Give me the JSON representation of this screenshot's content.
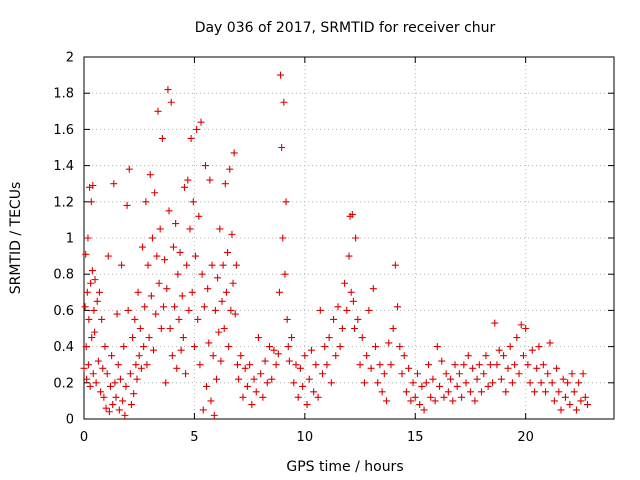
{
  "chart_data": {
    "type": "scatter",
    "title": "Day 036 of 2017, SRMTID for receiver chur",
    "xlabel": "GPS time / hours",
    "ylabel": "SRMTID / TECUs",
    "xlim": [
      0,
      24
    ],
    "ylim": [
      0,
      2
    ],
    "x_ticks": [
      0,
      5,
      10,
      15,
      20
    ],
    "x_tick_labels": [
      "0",
      "5",
      "10",
      "15",
      "20"
    ],
    "y_ticks": [
      0,
      0.2,
      0.4,
      0.6,
      0.8,
      1.0,
      1.2,
      1.4,
      1.6,
      1.8,
      2.0
    ],
    "y_tick_labels": [
      "0",
      "0.2",
      "0.4",
      "0.6",
      "0.8",
      "1",
      "1.2",
      "1.4",
      "1.6",
      "1.8",
      "2"
    ],
    "grid": true,
    "marker": "+",
    "marker_color": "#e00000",
    "series": [
      {
        "name": "SRMTID",
        "points": [
          [
            0.0,
            0.28
          ],
          [
            0.05,
            0.62
          ],
          [
            0.08,
            0.91
          ],
          [
            0.1,
            0.4
          ],
          [
            0.12,
            0.22
          ],
          [
            0.15,
            0.7
          ],
          [
            0.18,
            1.0
          ],
          [
            0.2,
            0.3
          ],
          [
            0.22,
            0.55
          ],
          [
            0.25,
            1.28
          ],
          [
            0.28,
            0.18
          ],
          [
            0.3,
            0.75
          ],
          [
            0.33,
            1.2
          ],
          [
            0.35,
            0.45
          ],
          [
            0.38,
            0.82
          ],
          [
            0.4,
            1.29
          ],
          [
            0.42,
            0.25
          ],
          [
            0.45,
            0.6
          ],
          [
            0.48,
            0.48
          ],
          [
            0.5,
            0.77
          ],
          [
            0.55,
            0.2
          ],
          [
            0.6,
            0.65
          ],
          [
            0.65,
            0.32
          ],
          [
            0.7,
            0.7
          ],
          [
            0.75,
            0.15
          ],
          [
            0.8,
            0.55
          ],
          [
            0.85,
            0.28
          ],
          [
            0.9,
            0.12
          ],
          [
            0.95,
            0.4
          ],
          [
            1.0,
            0.06
          ],
          [
            1.05,
            0.25
          ],
          [
            1.1,
            0.9
          ],
          [
            1.15,
            0.04
          ],
          [
            1.2,
            0.18
          ],
          [
            1.25,
            0.35
          ],
          [
            1.3,
            0.08
          ],
          [
            1.35,
            1.3
          ],
          [
            1.4,
            0.2
          ],
          [
            1.45,
            0.12
          ],
          [
            1.5,
            0.58
          ],
          [
            1.55,
            0.3
          ],
          [
            1.6,
            0.05
          ],
          [
            1.65,
            0.22
          ],
          [
            1.7,
            0.85
          ],
          [
            1.75,
            0.1
          ],
          [
            1.8,
            0.4
          ],
          [
            1.85,
            0.02
          ],
          [
            1.9,
            0.18
          ],
          [
            1.95,
            1.18
          ],
          [
            2.0,
            0.6
          ],
          [
            2.05,
            1.38
          ],
          [
            2.1,
            0.25
          ],
          [
            2.15,
            0.08
          ],
          [
            2.2,
            0.45
          ],
          [
            2.25,
            0.14
          ],
          [
            2.3,
            0.55
          ],
          [
            2.35,
            0.3
          ],
          [
            2.4,
            0.22
          ],
          [
            2.45,
            0.7
          ],
          [
            2.5,
            0.35
          ],
          [
            2.55,
            0.5
          ],
          [
            2.6,
            0.28
          ],
          [
            2.65,
            0.95
          ],
          [
            2.7,
            0.4
          ],
          [
            2.75,
            0.62
          ],
          [
            2.8,
            1.2
          ],
          [
            2.85,
            0.3
          ],
          [
            2.9,
            0.85
          ],
          [
            2.95,
            0.45
          ],
          [
            3.0,
            1.35
          ],
          [
            3.05,
            0.68
          ],
          [
            3.1,
            1.0
          ],
          [
            3.15,
            0.38
          ],
          [
            3.2,
            1.25
          ],
          [
            3.25,
            0.58
          ],
          [
            3.3,
            0.9
          ],
          [
            3.35,
            1.7
          ],
          [
            3.4,
            0.75
          ],
          [
            3.45,
            1.05
          ],
          [
            3.5,
            0.5
          ],
          [
            3.55,
            1.55
          ],
          [
            3.6,
            0.62
          ],
          [
            3.65,
            0.88
          ],
          [
            3.7,
            0.2
          ],
          [
            3.75,
            0.72
          ],
          [
            3.8,
            1.82
          ],
          [
            3.85,
            1.15
          ],
          [
            3.9,
            0.5
          ],
          [
            3.95,
            1.75
          ],
          [
            4.0,
            0.35
          ],
          [
            4.05,
            0.95
          ],
          [
            4.1,
            0.62
          ],
          [
            4.15,
            1.08
          ],
          [
            4.2,
            0.28
          ],
          [
            4.25,
            0.8
          ],
          [
            4.3,
            0.55
          ],
          [
            4.35,
            0.92
          ],
          [
            4.4,
            0.38
          ],
          [
            4.45,
            0.68
          ],
          [
            4.5,
            0.45
          ],
          [
            4.55,
            1.28
          ],
          [
            4.6,
            0.25
          ],
          [
            4.65,
            0.85
          ],
          [
            4.7,
            1.32
          ],
          [
            4.75,
            0.6
          ],
          [
            4.8,
            1.05
          ],
          [
            4.85,
            1.55
          ],
          [
            4.9,
            0.7
          ],
          [
            4.95,
            1.2
          ],
          [
            5.0,
            0.4
          ],
          [
            5.05,
            0.9
          ],
          [
            5.1,
            1.6
          ],
          [
            5.15,
            0.55
          ],
          [
            5.2,
            1.12
          ],
          [
            5.25,
            0.3
          ],
          [
            5.3,
            1.64
          ],
          [
            5.35,
            0.8
          ],
          [
            5.4,
            0.05
          ],
          [
            5.45,
            0.62
          ],
          [
            5.5,
            1.4
          ],
          [
            5.55,
            0.18
          ],
          [
            5.6,
            0.72
          ],
          [
            5.65,
            0.42
          ],
          [
            5.7,
            1.32
          ],
          [
            5.75,
            0.1
          ],
          [
            5.8,
            0.85
          ],
          [
            5.85,
            0.35
          ],
          [
            5.9,
            0.02
          ],
          [
            5.95,
            0.6
          ],
          [
            6.0,
            0.22
          ],
          [
            6.05,
            0.78
          ],
          [
            6.1,
            0.48
          ],
          [
            6.15,
            1.05
          ],
          [
            6.2,
            0.32
          ],
          [
            6.25,
            0.65
          ],
          [
            6.3,
            0.85
          ],
          [
            6.35,
            0.5
          ],
          [
            6.4,
            1.3
          ],
          [
            6.45,
            0.7
          ],
          [
            6.5,
            0.92
          ],
          [
            6.55,
            0.4
          ],
          [
            6.6,
            1.38
          ],
          [
            6.65,
            0.6
          ],
          [
            6.7,
            1.02
          ],
          [
            6.75,
            0.75
          ],
          [
            6.8,
            1.47
          ],
          [
            6.85,
            0.58
          ],
          [
            6.9,
            0.85
          ],
          [
            6.95,
            0.3
          ],
          [
            7.0,
            0.22
          ],
          [
            7.1,
            0.35
          ],
          [
            7.2,
            0.12
          ],
          [
            7.3,
            0.28
          ],
          [
            7.4,
            0.18
          ],
          [
            7.5,
            0.3
          ],
          [
            7.6,
            0.08
          ],
          [
            7.7,
            0.22
          ],
          [
            7.8,
            0.15
          ],
          [
            7.9,
            0.45
          ],
          [
            8.0,
            0.25
          ],
          [
            8.1,
            0.12
          ],
          [
            8.2,
            0.32
          ],
          [
            8.3,
            0.2
          ],
          [
            8.4,
            0.4
          ],
          [
            8.5,
            0.22
          ],
          [
            8.6,
            0.38
          ],
          [
            8.7,
            0.3
          ],
          [
            8.8,
            0.36
          ],
          [
            8.85,
            0.7
          ],
          [
            8.9,
            1.9
          ],
          [
            8.95,
            1.5
          ],
          [
            9.0,
            1.0
          ],
          [
            9.05,
            1.75
          ],
          [
            9.1,
            0.8
          ],
          [
            9.15,
            1.2
          ],
          [
            9.2,
            0.55
          ],
          [
            9.25,
            0.4
          ],
          [
            9.3,
            0.32
          ],
          [
            9.4,
            0.45
          ],
          [
            9.5,
            0.2
          ],
          [
            9.6,
            0.3
          ],
          [
            9.7,
            0.12
          ],
          [
            9.8,
            0.28
          ],
          [
            9.9,
            0.18
          ],
          [
            10.0,
            0.35
          ],
          [
            10.1,
            0.08
          ],
          [
            10.2,
            0.22
          ],
          [
            10.3,
            0.38
          ],
          [
            10.4,
            0.15
          ],
          [
            10.5,
            0.3
          ],
          [
            10.6,
            0.12
          ],
          [
            10.7,
            0.6
          ],
          [
            10.8,
            0.25
          ],
          [
            10.9,
            0.4
          ],
          [
            11.0,
            0.3
          ],
          [
            11.1,
            0.45
          ],
          [
            11.2,
            0.2
          ],
          [
            11.3,
            0.55
          ],
          [
            11.4,
            0.35
          ],
          [
            11.5,
            0.62
          ],
          [
            11.6,
            0.4
          ],
          [
            11.7,
            0.5
          ],
          [
            11.8,
            0.75
          ],
          [
            11.9,
            0.6
          ],
          [
            12.0,
            0.9
          ],
          [
            12.05,
            1.12
          ],
          [
            12.1,
            0.7
          ],
          [
            12.15,
            1.13
          ],
          [
            12.2,
            0.65
          ],
          [
            12.25,
            0.5
          ],
          [
            12.3,
            1.0
          ],
          [
            12.4,
            0.55
          ],
          [
            12.5,
            0.3
          ],
          [
            12.6,
            0.45
          ],
          [
            12.7,
            0.2
          ],
          [
            12.8,
            0.35
          ],
          [
            12.9,
            0.6
          ],
          [
            13.0,
            0.28
          ],
          [
            13.1,
            0.72
          ],
          [
            13.2,
            0.4
          ],
          [
            13.3,
            0.2
          ],
          [
            13.4,
            0.3
          ],
          [
            13.5,
            0.15
          ],
          [
            13.6,
            0.25
          ],
          [
            13.7,
            0.1
          ],
          [
            13.8,
            0.42
          ],
          [
            13.9,
            0.3
          ],
          [
            14.0,
            0.5
          ],
          [
            14.1,
            0.85
          ],
          [
            14.2,
            0.62
          ],
          [
            14.3,
            0.4
          ],
          [
            14.4,
            0.25
          ],
          [
            14.5,
            0.35
          ],
          [
            14.6,
            0.15
          ],
          [
            14.7,
            0.28
          ],
          [
            14.8,
            0.1
          ],
          [
            14.9,
            0.2
          ],
          [
            15.0,
            0.12
          ],
          [
            15.1,
            0.25
          ],
          [
            15.2,
            0.08
          ],
          [
            15.3,
            0.18
          ],
          [
            15.4,
            0.05
          ],
          [
            15.5,
            0.2
          ],
          [
            15.6,
            0.3
          ],
          [
            15.7,
            0.12
          ],
          [
            15.8,
            0.22
          ],
          [
            15.9,
            0.1
          ],
          [
            16.0,
            0.4
          ],
          [
            16.1,
            0.18
          ],
          [
            16.2,
            0.32
          ],
          [
            16.3,
            0.12
          ],
          [
            16.4,
            0.25
          ],
          [
            16.5,
            0.15
          ],
          [
            16.6,
            0.22
          ],
          [
            16.7,
            0.1
          ],
          [
            16.8,
            0.3
          ],
          [
            16.9,
            0.18
          ],
          [
            17.0,
            0.25
          ],
          [
            17.1,
            0.12
          ],
          [
            17.2,
            0.3
          ],
          [
            17.3,
            0.2
          ],
          [
            17.4,
            0.35
          ],
          [
            17.5,
            0.15
          ],
          [
            17.6,
            0.28
          ],
          [
            17.7,
            0.1
          ],
          [
            17.8,
            0.22
          ],
          [
            17.9,
            0.3
          ],
          [
            18.0,
            0.15
          ],
          [
            18.1,
            0.25
          ],
          [
            18.2,
            0.35
          ],
          [
            18.3,
            0.18
          ],
          [
            18.4,
            0.3
          ],
          [
            18.5,
            0.2
          ],
          [
            18.6,
            0.53
          ],
          [
            18.7,
            0.3
          ],
          [
            18.8,
            0.38
          ],
          [
            18.9,
            0.22
          ],
          [
            19.0,
            0.35
          ],
          [
            19.1,
            0.15
          ],
          [
            19.2,
            0.28
          ],
          [
            19.3,
            0.4
          ],
          [
            19.4,
            0.2
          ],
          [
            19.5,
            0.3
          ],
          [
            19.6,
            0.45
          ],
          [
            19.7,
            0.25
          ],
          [
            19.8,
            0.52
          ],
          [
            19.9,
            0.35
          ],
          [
            20.0,
            0.5
          ],
          [
            20.1,
            0.3
          ],
          [
            20.2,
            0.2
          ],
          [
            20.3,
            0.38
          ],
          [
            20.4,
            0.15
          ],
          [
            20.5,
            0.28
          ],
          [
            20.6,
            0.4
          ],
          [
            20.7,
            0.2
          ],
          [
            20.8,
            0.3
          ],
          [
            20.9,
            0.15
          ],
          [
            21.0,
            0.25
          ],
          [
            21.1,
            0.42
          ],
          [
            21.2,
            0.2
          ],
          [
            21.3,
            0.1
          ],
          [
            21.4,
            0.28
          ],
          [
            21.5,
            0.15
          ],
          [
            21.6,
            0.05
          ],
          [
            21.7,
            0.22
          ],
          [
            21.8,
            0.12
          ],
          [
            21.9,
            0.2
          ],
          [
            22.0,
            0.08
          ],
          [
            22.1,
            0.25
          ],
          [
            22.2,
            0.15
          ],
          [
            22.3,
            0.05
          ],
          [
            22.4,
            0.2
          ],
          [
            22.5,
            0.1
          ],
          [
            22.6,
            0.25
          ],
          [
            22.7,
            0.12
          ],
          [
            22.8,
            0.08
          ]
        ]
      }
    ]
  }
}
